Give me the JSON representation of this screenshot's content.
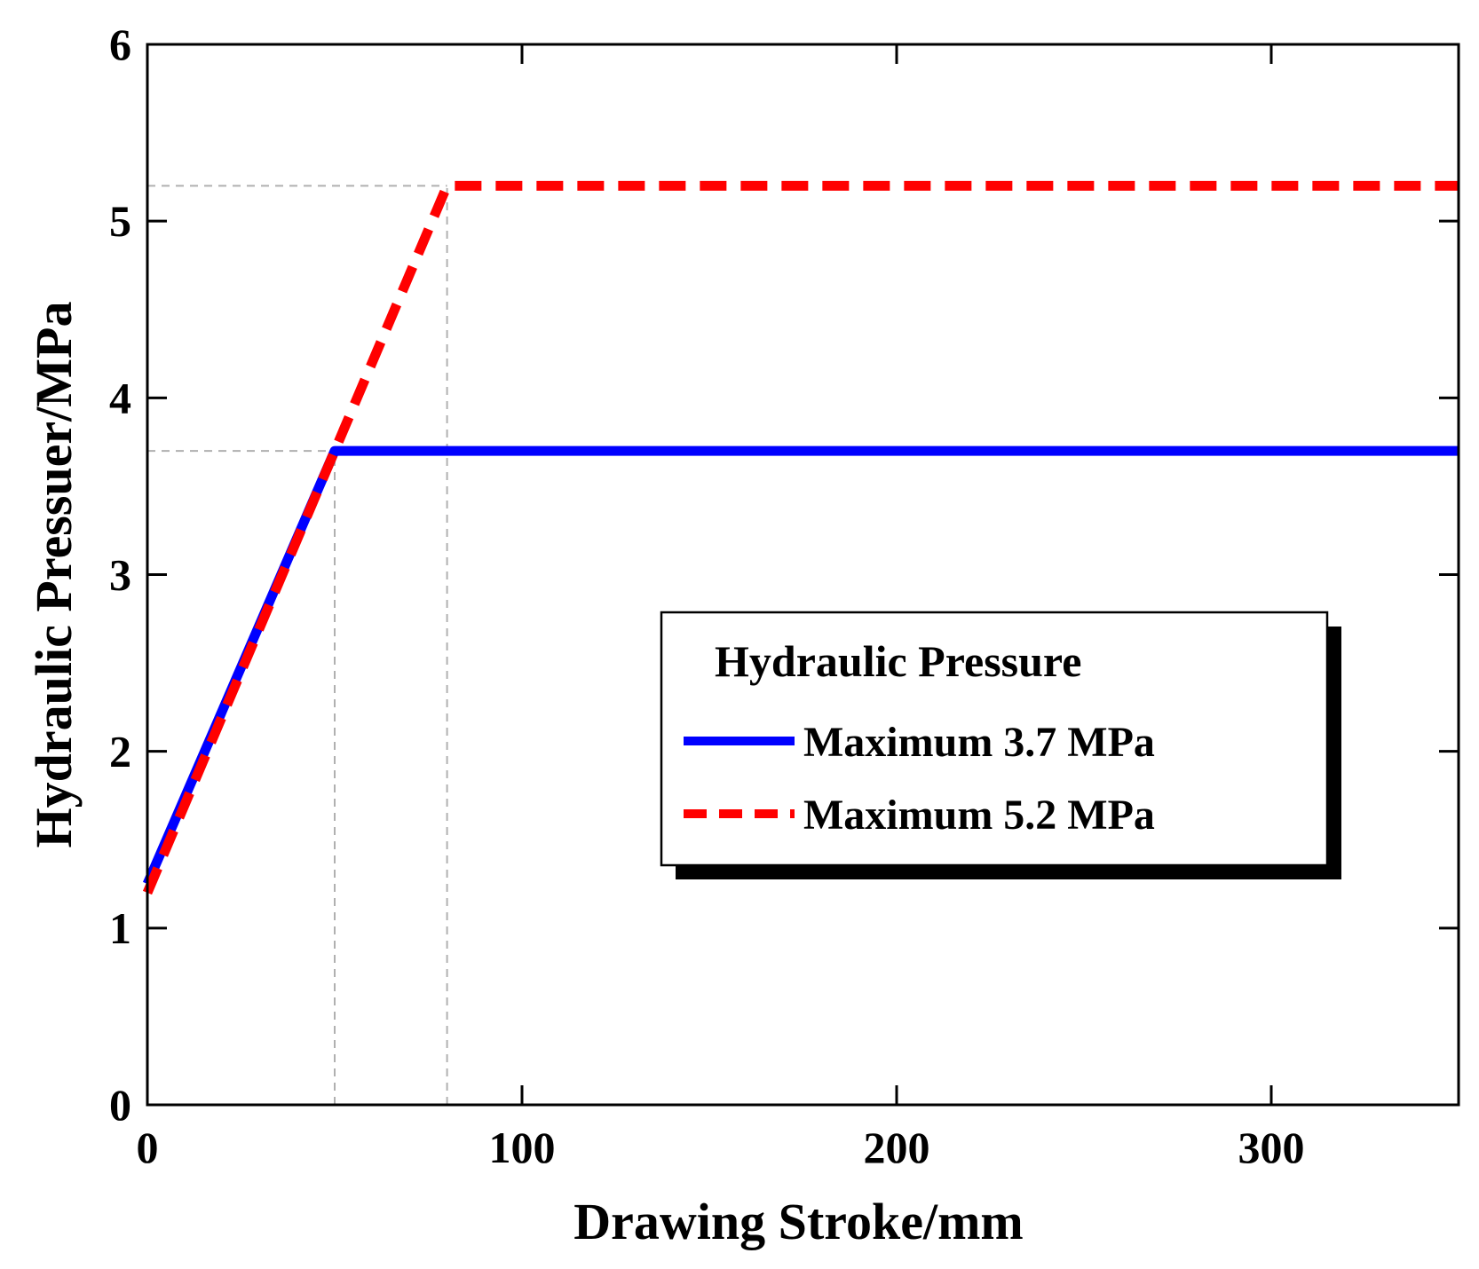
{
  "chart_data": {
    "type": "line",
    "title": "",
    "xlabel": "Drawing Stroke/mm",
    "ylabel": "Hydraulic Pressuer/MPa",
    "xlim": [
      0,
      350
    ],
    "ylim": [
      0,
      6
    ],
    "xticks": [
      0,
      100,
      200,
      300
    ],
    "xtick_labels": [
      "0",
      "100",
      "200",
      "300"
    ],
    "yticks": [
      0,
      1,
      2,
      3,
      4,
      5,
      6
    ],
    "ytick_labels": [
      "0",
      "1",
      "2",
      "3",
      "4",
      "5",
      "6"
    ],
    "grid": false,
    "legend": {
      "title": "Hydraulic Pressure",
      "placement": "center-right"
    },
    "series": [
      {
        "name": "Maximum 3.7 MPa",
        "color": "#0000ff",
        "style": "solid",
        "x": [
          0,
          50,
          350
        ],
        "y": [
          1.25,
          3.7,
          3.7
        ]
      },
      {
        "name": "Maximum 5.2 MPa",
        "color": "#ff0000",
        "style": "dashed",
        "x": [
          0,
          50,
          80,
          350
        ],
        "y": [
          1.2,
          3.7,
          5.2,
          5.2
        ]
      }
    ],
    "reference_lines": [
      {
        "type": "horizontal",
        "y": 5.2,
        "x_from": 0,
        "x_to": 80,
        "color": "#b0b0b0"
      },
      {
        "type": "horizontal",
        "y": 3.7,
        "x_from": 0,
        "x_to": 50,
        "color": "#b0b0b0"
      },
      {
        "type": "vertical",
        "x": 50,
        "y_from": 0,
        "y_to": 3.7,
        "color": "#b0b0b0"
      },
      {
        "type": "vertical",
        "x": 80,
        "y_from": 0,
        "y_to": 5.2,
        "color": "#b0b0b0"
      }
    ]
  }
}
